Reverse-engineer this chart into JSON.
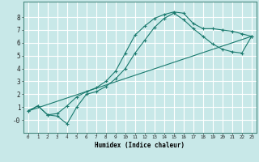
{
  "title": "",
  "xlabel": "Humidex (Indice chaleur)",
  "bg_color": "#c8e8e8",
  "grid_color": "#ffffff",
  "line_color": "#1a7a6e",
  "xlim": [
    -0.5,
    23.5
  ],
  "ylim": [
    -1.0,
    9.2
  ],
  "xticks": [
    0,
    1,
    2,
    3,
    4,
    5,
    6,
    7,
    8,
    9,
    10,
    11,
    12,
    13,
    14,
    15,
    16,
    17,
    18,
    19,
    20,
    21,
    22,
    23
  ],
  "yticks": [
    0,
    1,
    2,
    3,
    4,
    5,
    6,
    7,
    8
  ],
  "ytick_labels": [
    "-0",
    "1",
    "2",
    "3",
    "4",
    "5",
    "6",
    "7",
    "8"
  ],
  "line1_x": [
    0,
    1,
    2,
    3,
    4,
    5,
    6,
    7,
    8,
    9,
    10,
    11,
    12,
    13,
    14,
    15,
    16,
    17,
    18,
    19,
    20,
    21,
    22,
    23
  ],
  "line1_y": [
    0.7,
    1.1,
    0.4,
    0.5,
    1.1,
    1.8,
    2.2,
    2.5,
    3.0,
    3.8,
    5.2,
    6.6,
    7.3,
    7.9,
    8.2,
    8.4,
    8.3,
    7.5,
    7.1,
    7.1,
    7.0,
    6.9,
    6.7,
    6.5
  ],
  "line2_x": [
    0,
    1,
    2,
    3,
    4,
    5,
    6,
    7,
    8,
    9,
    10,
    11,
    12,
    13,
    14,
    15,
    16,
    17,
    18,
    19,
    20,
    21,
    22,
    23
  ],
  "line2_y": [
    0.7,
    1.1,
    0.4,
    0.3,
    -0.3,
    1.0,
    2.0,
    2.2,
    2.6,
    3.2,
    4.0,
    5.2,
    6.2,
    7.2,
    7.9,
    8.3,
    7.8,
    7.1,
    6.5,
    5.9,
    5.5,
    5.3,
    5.2,
    6.5
  ],
  "line3_x": [
    0,
    23
  ],
  "line3_y": [
    0.7,
    6.5
  ]
}
